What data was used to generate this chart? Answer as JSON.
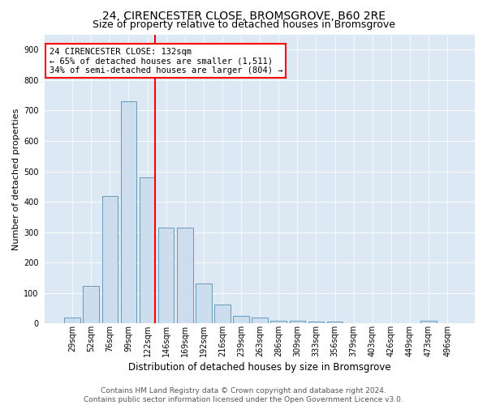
{
  "title": "24, CIRENCESTER CLOSE, BROMSGROVE, B60 2RE",
  "subtitle": "Size of property relative to detached houses in Bromsgrove",
  "xlabel": "Distribution of detached houses by size in Bromsgrove",
  "ylabel": "Number of detached properties",
  "footer_line1": "Contains HM Land Registry data © Crown copyright and database right 2024.",
  "footer_line2": "Contains public sector information licensed under the Open Government Licence v3.0.",
  "categories": [
    "29sqm",
    "52sqm",
    "76sqm",
    "99sqm",
    "122sqm",
    "146sqm",
    "169sqm",
    "192sqm",
    "216sqm",
    "239sqm",
    "263sqm",
    "286sqm",
    "309sqm",
    "333sqm",
    "356sqm",
    "379sqm",
    "403sqm",
    "426sqm",
    "449sqm",
    "473sqm",
    "496sqm"
  ],
  "values": [
    20,
    122,
    418,
    730,
    480,
    315,
    315,
    130,
    63,
    25,
    20,
    10,
    10,
    5,
    5,
    0,
    0,
    0,
    0,
    8,
    0
  ],
  "bar_color": "#ccdded",
  "bar_edge_color": "#6699bb",
  "red_line_x": 4.42,
  "annotation_line1": "24 CIRENCESTER CLOSE: 132sqm",
  "annotation_line2": "← 65% of detached houses are smaller (1,511)",
  "annotation_line3": "34% of semi-detached houses are larger (804) →",
  "annot_box_facecolor": "white",
  "annot_box_edgecolor": "red",
  "ylim": [
    0,
    950
  ],
  "yticks": [
    0,
    100,
    200,
    300,
    400,
    500,
    600,
    700,
    800,
    900
  ],
  "bg_color": "#dce8f4",
  "grid_color": "white",
  "title_fontsize": 10,
  "subtitle_fontsize": 9,
  "ylabel_fontsize": 8,
  "xlabel_fontsize": 8.5,
  "tick_fontsize": 7,
  "annot_fontsize": 7.5,
  "footer_fontsize": 6.5
}
